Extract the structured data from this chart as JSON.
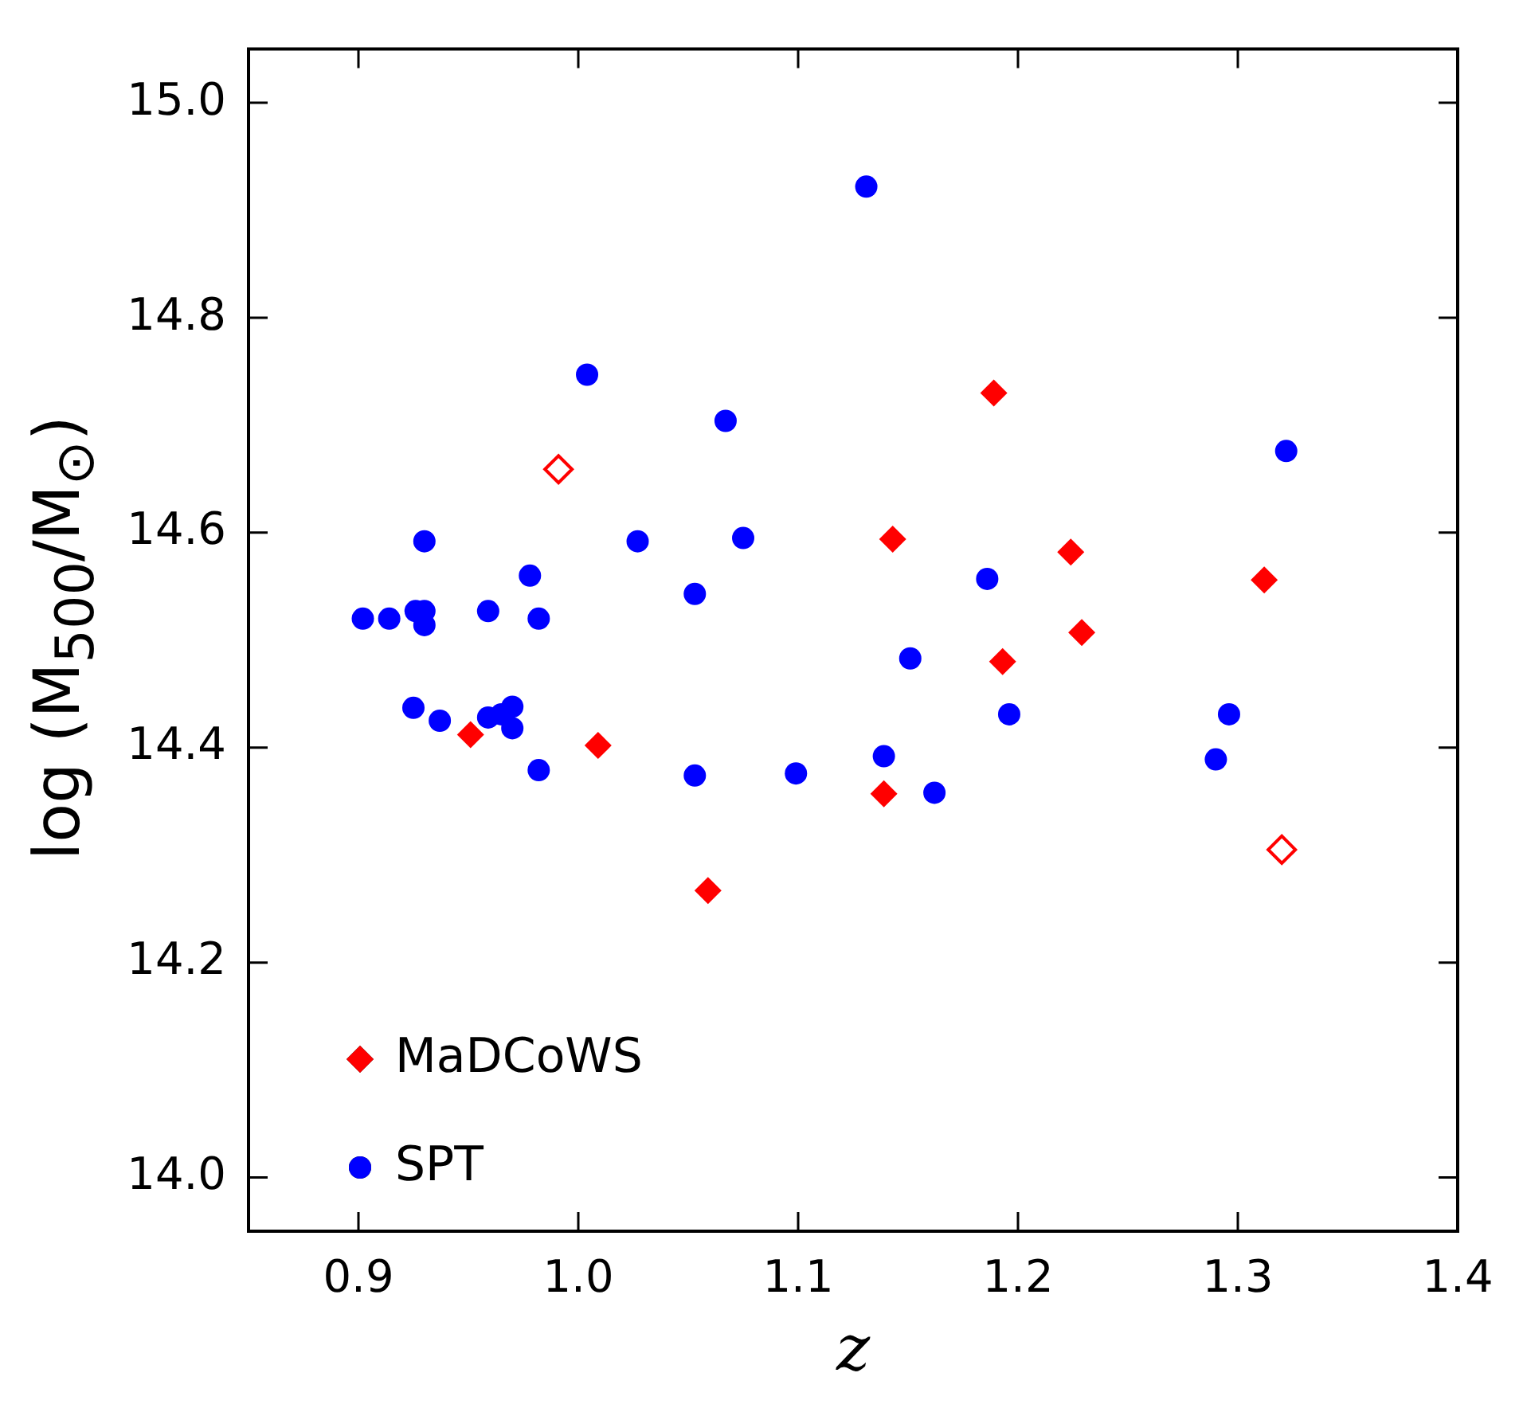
{
  "chart_data": {
    "type": "scatter",
    "xlabel": "z",
    "ylabel": "log (M$_{500}$/M$_{⊙}$)",
    "xlim": [
      0.85,
      1.4
    ],
    "xticks": [
      0.9,
      {
        "value": 1,
        "label": "1.0"
      },
      1.1,
      1.2,
      1.3,
      1.4
    ],
    "ylim": [
      13.95,
      15.05
    ],
    "yticks": [
      {
        "value": 14,
        "label": "14.0"
      },
      14.2,
      14.4,
      14.6,
      14.8,
      {
        "value": 15,
        "label": "15.0"
      }
    ],
    "legend": "bottom left",
    "series": [
      {
        "name": "MaDCoWS",
        "color": "#ff0000",
        "marker": "diamond",
        "x": [
          1.189,
          1.143,
          1.224,
          1.312,
          1.229,
          1.193,
          0.951,
          1.009,
          1.139,
          1.059
        ],
        "values": [
          14.73,
          14.594,
          14.582,
          14.556,
          14.507,
          14.48,
          14.412,
          14.402,
          14.357,
          14.267
        ]
      },
      {
        "color": "#ff0000",
        "marker": "diamond",
        "x": [
          0.991,
          1.32
        ],
        "values": [
          14.659,
          14.305
        ]
      },
      {
        "name": "SPT",
        "color": "#0000ff",
        "marker": "circle",
        "x": [
          1.131,
          1.004,
          1.067,
          1.322,
          0.93,
          1.027,
          1.075,
          0.978,
          1.186,
          1.053,
          0.902,
          0.914,
          0.926,
          0.93,
          0.93,
          0.959,
          0.982,
          1.151,
          1.196,
          1.296,
          0.925,
          0.937,
          0.959,
          0.965,
          0.97,
          0.97,
          0.982,
          1.053,
          1.099,
          1.139,
          1.162,
          1.29
        ],
        "values": [
          14.922,
          14.747,
          14.704,
          14.676,
          14.592,
          14.592,
          14.595,
          14.56,
          14.557,
          14.543,
          14.52,
          14.52,
          14.527,
          14.527,
          14.514,
          14.527,
          14.52,
          14.483,
          14.431,
          14.431,
          14.437,
          14.425,
          14.428,
          14.431,
          14.438,
          14.418,
          14.379,
          14.374,
          14.376,
          14.392,
          14.358,
          14.389
        ]
      }
    ]
  }
}
